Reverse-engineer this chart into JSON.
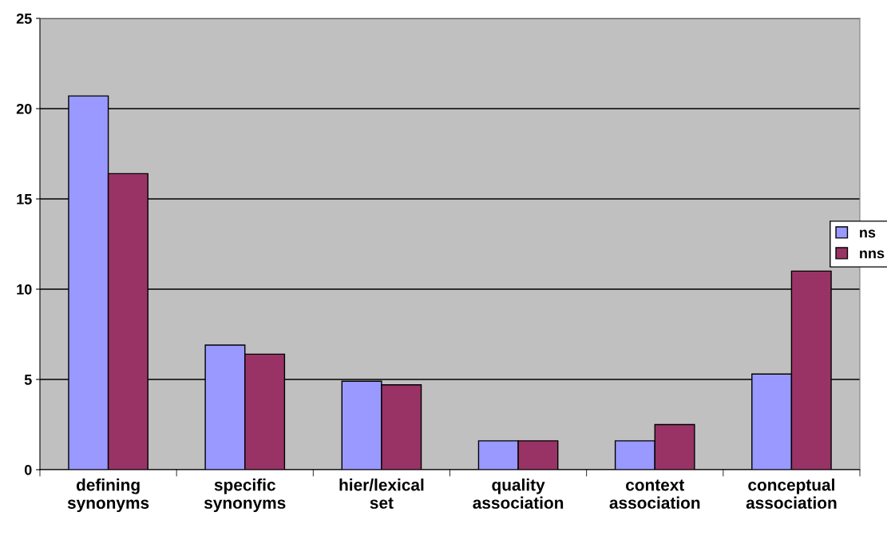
{
  "chart_data": {
    "type": "bar",
    "categories": [
      "defining\nsynonyms",
      "specific\nsynonyms",
      "hier/lexical\nset",
      "quality\nassociation",
      "context\nassociation",
      "conceptual\nassociation"
    ],
    "series": [
      {
        "name": "ns",
        "color": "#9999ff",
        "values": [
          20.7,
          6.9,
          4.9,
          1.6,
          1.6,
          5.3
        ]
      },
      {
        "name": "nns",
        "color": "#993366",
        "values": [
          16.4,
          6.4,
          4.7,
          1.6,
          2.5,
          11.0
        ]
      }
    ],
    "ylim": [
      0,
      25
    ],
    "yticks": [
      0,
      5,
      10,
      15,
      20,
      25
    ],
    "grid": "y",
    "legend": "right"
  }
}
